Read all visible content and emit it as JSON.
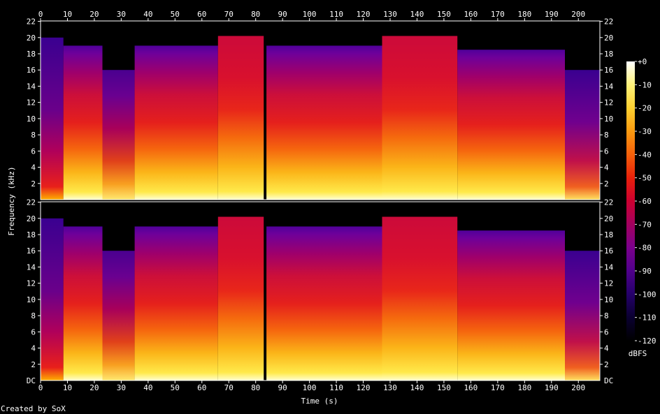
{
  "chart_data": {
    "type": "heatmap",
    "title": "",
    "xlabel": "Time (s)",
    "ylabel": "Frequency (kHz)",
    "x_ticks": [
      0,
      10,
      20,
      30,
      40,
      50,
      60,
      70,
      80,
      90,
      100,
      110,
      120,
      130,
      140,
      150,
      160,
      170,
      180,
      190,
      200
    ],
    "xlim": [
      0,
      208
    ],
    "y_ticks": [
      2,
      4,
      6,
      8,
      10,
      12,
      14,
      16,
      18,
      20,
      22
    ],
    "y_bottom_label": "DC",
    "ylim": [
      0,
      22.05
    ],
    "channels": 2,
    "colorbar": {
      "label": "dBFS",
      "ticks": [
        "+0",
        "-10",
        "-20",
        "-30",
        "-40",
        "-50",
        "-60",
        "-70",
        "-80",
        "-90",
        "-100",
        "-110",
        "-120"
      ],
      "range": [
        -120,
        0
      ]
    },
    "segments": [
      {
        "start": 0,
        "end": 8.5,
        "cutoff_khz": 20,
        "level": "quiet"
      },
      {
        "start": 8.5,
        "end": 23,
        "cutoff_khz": 19,
        "level": "loud"
      },
      {
        "start": 23,
        "end": 35,
        "cutoff_khz": 16,
        "level": "sparse"
      },
      {
        "start": 35,
        "end": 66,
        "cutoff_khz": 19,
        "level": "loud"
      },
      {
        "start": 66,
        "end": 83,
        "cutoff_khz": 20.2,
        "level": "full"
      },
      {
        "start": 83,
        "end": 84,
        "cutoff_khz": 0,
        "level": "gap"
      },
      {
        "start": 84,
        "end": 127,
        "cutoff_khz": 19,
        "level": "loud"
      },
      {
        "start": 127,
        "end": 155,
        "cutoff_khz": 20.2,
        "level": "full"
      },
      {
        "start": 155,
        "end": 195,
        "cutoff_khz": 18.5,
        "level": "loud"
      },
      {
        "start": 195,
        "end": 208,
        "cutoff_khz": 16,
        "level": "fade"
      }
    ],
    "colors": {
      "background": "#000000",
      "axis": "#ffffff",
      "palette": [
        "#000000",
        "#0a0030",
        "#25006a",
        "#50008c",
        "#7a008c",
        "#a3005e",
        "#cc0030",
        "#e8200a",
        "#f5600a",
        "#fb9a10",
        "#fdd030",
        "#fff27a",
        "#ffffff"
      ]
    }
  },
  "footer": {
    "credit": "Created by SoX"
  }
}
